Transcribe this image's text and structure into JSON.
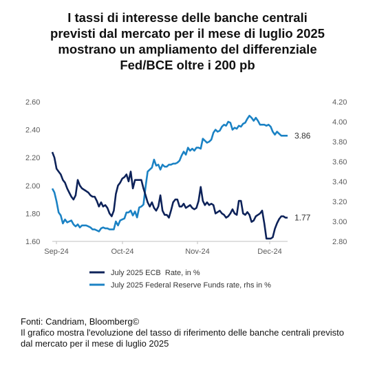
{
  "title_lines": [
    "I tassi di interesse delle banche centrali",
    "previsti dal mercato per il mese di luglio 2025",
    "mostrano un ampliamento del differenziale",
    "Fed/BCE oltre i 200 pb"
  ],
  "footer": {
    "source": "Fonti: Candriam, Bloomberg©",
    "caption": "Il grafico mostra l'evoluzione del tasso di riferimento delle banche centrali previsto dal mercato per il mese di luglio 2025"
  },
  "colors": {
    "ecb": "#0d2259",
    "fed": "#1b82c4",
    "axis": "#bfbfbf"
  },
  "chart_data": {
    "type": "line",
    "x_ticks": [
      "Sep-24",
      "Oct-24",
      "Nov-24",
      "Dec-24"
    ],
    "y_left": {
      "ylim": [
        1.6,
        2.6
      ],
      "ticks": [
        "1.60",
        "1.80",
        "2.00",
        "2.20",
        "2.40",
        "2.60"
      ]
    },
    "y_right": {
      "ylim": [
        2.8,
        4.2
      ],
      "ticks": [
        "2.80",
        "3.00",
        "3.20",
        "3.40",
        "3.60",
        "3.80",
        "4.00",
        "4.20"
      ]
    },
    "legend_position": "bottom",
    "series": [
      {
        "name": "July 2025 ECB  Rate, in %",
        "axis": "left",
        "end_label": "1.77",
        "values": [
          2.24,
          2.2,
          2.12,
          2.1,
          2.08,
          2.04,
          2.02,
          1.98,
          1.95,
          1.92,
          1.9,
          1.93,
          2.04,
          2.0,
          1.98,
          1.97,
          1.96,
          1.95,
          1.93,
          1.92,
          1.92,
          1.89,
          1.85,
          1.88,
          1.85,
          1.86,
          1.84,
          1.8,
          1.78,
          1.82,
          1.94,
          2.0,
          2.02,
          2.05,
          2.06,
          2.08,
          2.03,
          2.1,
          1.98,
          2.04,
          2.04,
          2.04,
          2.04,
          1.98,
          1.93,
          1.88,
          1.85,
          1.88,
          1.84,
          1.82,
          1.85,
          1.93,
          1.82,
          1.79,
          1.79,
          1.77,
          1.82,
          1.88,
          1.9,
          1.9,
          1.85,
          1.85,
          1.87,
          1.84,
          1.85,
          1.86,
          1.84,
          1.83,
          1.84,
          1.89,
          1.99,
          1.89,
          1.86,
          1.88,
          1.86,
          1.87,
          1.86,
          1.8,
          1.81,
          1.82,
          1.8,
          1.79,
          1.77,
          1.78,
          1.8,
          1.83,
          1.8,
          1.79,
          1.89,
          1.89,
          1.8,
          1.79,
          1.81,
          1.79,
          1.74,
          1.75,
          1.78,
          1.79,
          1.8,
          1.82,
          1.73,
          1.62,
          1.62,
          1.62,
          1.63,
          1.69,
          1.73,
          1.76,
          1.78,
          1.78,
          1.77,
          1.77
        ]
      },
      {
        "name": "July 2025 Federal Reserve Funds rate, rhs in %",
        "axis": "right",
        "end_label": "3.86",
        "values": [
          3.33,
          3.29,
          3.2,
          3.09,
          3.06,
          2.98,
          3.02,
          2.99,
          3.0,
          3.01,
          2.97,
          2.95,
          2.97,
          2.94,
          2.96,
          2.96,
          2.96,
          2.95,
          2.94,
          2.92,
          2.92,
          2.91,
          2.9,
          2.93,
          2.94,
          2.93,
          2.93,
          2.92,
          2.92,
          2.92,
          3.0,
          2.96,
          3.01,
          3.02,
          3.03,
          3.09,
          3.09,
          3.11,
          3.06,
          3.1,
          3.04,
          3.14,
          3.15,
          3.17,
          3.35,
          3.5,
          3.52,
          3.54,
          3.62,
          3.56,
          3.57,
          3.52,
          3.57,
          3.55,
          3.55,
          3.57,
          3.57,
          3.58,
          3.58,
          3.59,
          3.61,
          3.66,
          3.7,
          3.67,
          3.74,
          3.71,
          3.73,
          3.71,
          3.74,
          3.74,
          3.73,
          3.83,
          3.81,
          3.79,
          3.8,
          3.82,
          3.89,
          3.92,
          3.9,
          3.91,
          3.95,
          3.97,
          3.96,
          4.0,
          3.99,
          3.92,
          3.94,
          3.93,
          3.96,
          3.95,
          3.98,
          3.99,
          4.03,
          4.06,
          4.04,
          4.01,
          4.04,
          4.01,
          3.97,
          3.97,
          3.97,
          3.96,
          3.97,
          3.95,
          3.9,
          3.87,
          3.9,
          3.88,
          3.86,
          3.86,
          3.86,
          3.86
        ]
      }
    ]
  }
}
